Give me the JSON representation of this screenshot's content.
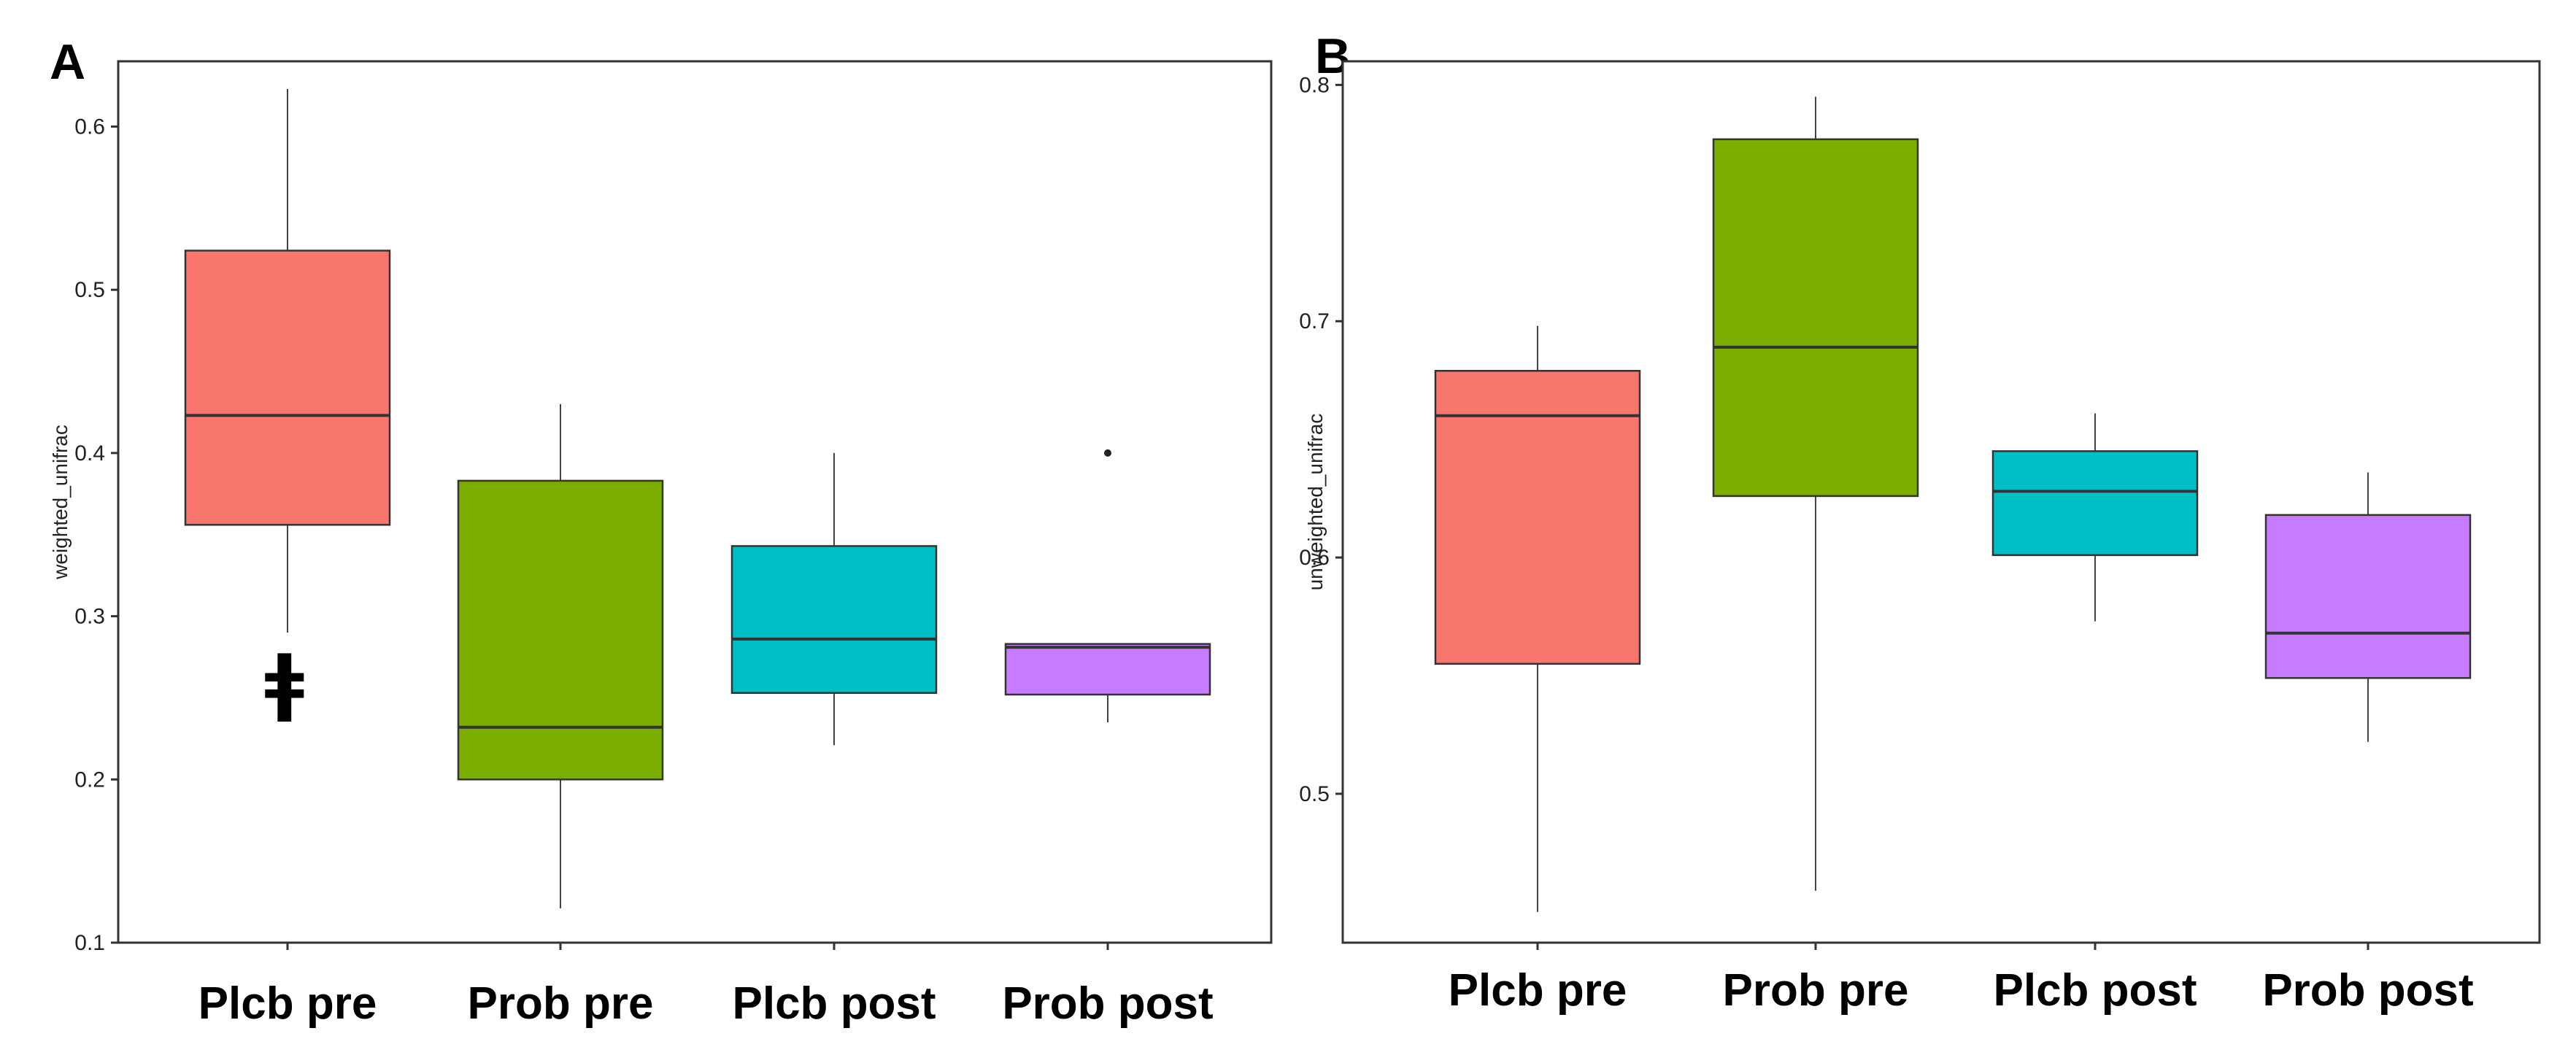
{
  "chart_data": [
    {
      "panel": "A",
      "type": "box",
      "xlabel": "",
      "ylabel": "weighted_unifrac",
      "ylim": [
        0.1,
        0.64
      ],
      "yticks": [
        0.1,
        0.2,
        0.3,
        0.4,
        0.5,
        0.6
      ],
      "categories": [
        "Plcb pre",
        "Prob pre",
        "Plcb post",
        "Prob post"
      ],
      "boxes": [
        {
          "name": "Plcb pre",
          "color": "#F8766D",
          "min": 0.29,
          "q1": 0.356,
          "median": 0.423,
          "q3": 0.524,
          "max": 0.623,
          "outliers": []
        },
        {
          "name": "Prob pre",
          "color": "#7CAE00",
          "min": 0.121,
          "q1": 0.2,
          "median": 0.232,
          "q3": 0.383,
          "max": 0.43,
          "outliers": []
        },
        {
          "name": "Plcb post",
          "color": "#00BFC4",
          "min": 0.221,
          "q1": 0.253,
          "median": 0.286,
          "q3": 0.343,
          "max": 0.4,
          "outliers": []
        },
        {
          "name": "Prob post",
          "color": "#C77CFF",
          "min": 0.235,
          "q1": 0.252,
          "median": 0.281,
          "q3": 0.283,
          "max": 0.283,
          "outliers": [
            0.4
          ]
        }
      ],
      "annotations": [
        {
          "text": "ǂ",
          "category": "Plcb pre",
          "y": 0.26
        }
      ]
    },
    {
      "panel": "B",
      "type": "box",
      "xlabel": "",
      "ylabel": "unweighted_unifrac",
      "ylim": [
        0.437,
        0.81
      ],
      "yticks": [
        0.5,
        0.6,
        0.7,
        0.8
      ],
      "categories": [
        "Plcb pre",
        "Prob pre",
        "Plcb post",
        "Prob post"
      ],
      "boxes": [
        {
          "name": "Plcb pre",
          "color": "#F8766D",
          "min": 0.45,
          "q1": 0.555,
          "median": 0.66,
          "q3": 0.679,
          "max": 0.698,
          "outliers": []
        },
        {
          "name": "Prob pre",
          "color": "#7CAE00",
          "min": 0.459,
          "q1": 0.626,
          "median": 0.689,
          "q3": 0.777,
          "max": 0.795,
          "outliers": []
        },
        {
          "name": "Plcb post",
          "color": "#00BFC4",
          "min": 0.573,
          "q1": 0.601,
          "median": 0.628,
          "q3": 0.645,
          "max": 0.661,
          "outliers": []
        },
        {
          "name": "Prob post",
          "color": "#C77CFF",
          "min": 0.522,
          "q1": 0.549,
          "median": 0.568,
          "q3": 0.618,
          "max": 0.636,
          "outliers": []
        }
      ],
      "annotations": []
    }
  ]
}
